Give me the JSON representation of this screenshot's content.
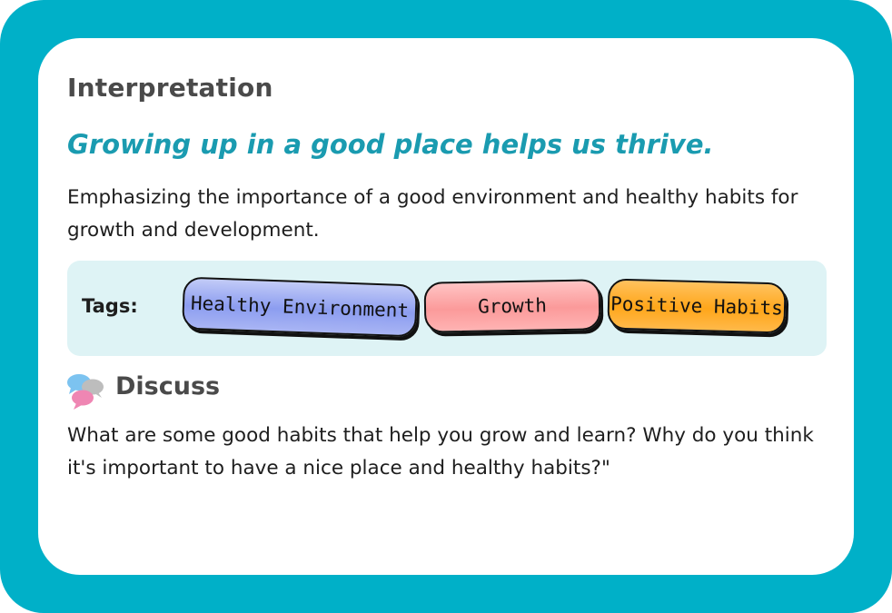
{
  "card": {
    "section_title": "Interpretation",
    "headline": "Growing up in a good place helps us thrive.",
    "description": "Emphasizing the importance of a good environment and healthy habits for growth and development.",
    "tags_label": "Tags:",
    "tags": [
      {
        "label": "Healthy Environment",
        "color": "#9aa8f2"
      },
      {
        "label": "Growth",
        "color": "#fb9a9a"
      },
      {
        "label": "Positive Habits",
        "color": "#ffa61a"
      }
    ],
    "discuss_title": "Discuss",
    "discuss_icon": "chat-bubbles-icon",
    "question": "What are some good habits that help you grow and learn? Why do you think it's important to have a nice place and healthy habits?\""
  },
  "colors": {
    "frame": "#00b0c8",
    "headline": "#1a9bb0",
    "tags_panel": "#def3f5",
    "heading_text": "#4a4a4a"
  }
}
